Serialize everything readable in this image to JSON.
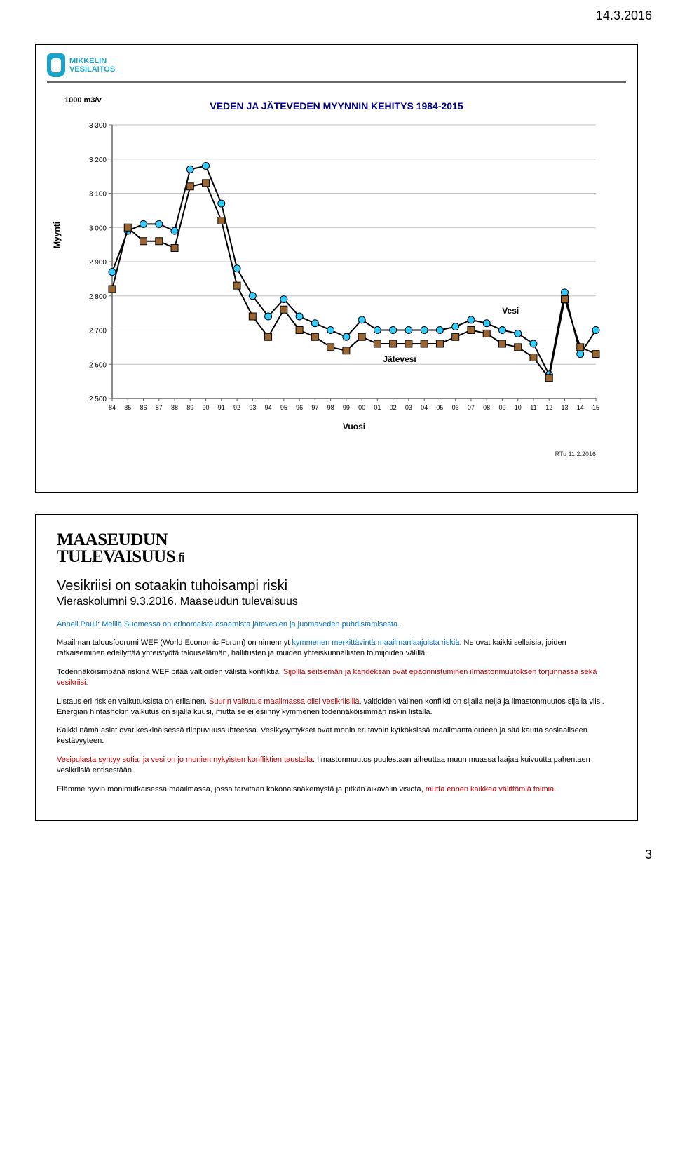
{
  "page": {
    "date": "14.3.2016",
    "number": "3"
  },
  "slide1": {
    "logo_line1": "MIKKELIN",
    "logo_line2": "VESILAITOS",
    "chart": {
      "type": "line",
      "title": "VEDEN JA JÄTEVEDEN MYYNNIN KEHITYS 1984-2015",
      "y_unit_label": "1000 m3/v",
      "x_label": "Vuosi",
      "y_label_rotated": "Myynti",
      "attribution": "RTu  11.2.2016",
      "ylim": [
        2500,
        3300
      ],
      "ytick_step": 100,
      "yticks": [
        "2 500",
        "2 600",
        "2 700",
        "2 800",
        "2 900",
        "3 000",
        "3 100",
        "3 200",
        "3 300"
      ],
      "xticks": [
        "84",
        "85",
        "86",
        "87",
        "88",
        "89",
        "90",
        "91",
        "92",
        "93",
        "94",
        "95",
        "96",
        "97",
        "98",
        "99",
        "00",
        "01",
        "02",
        "03",
        "04",
        "05",
        "06",
        "07",
        "08",
        "09",
        "10",
        "11",
        "12",
        "13",
        "14",
        "15"
      ],
      "background_color": "#ffffff",
      "grid_color": "#bfbfbf",
      "axis_color": "#666666",
      "label_fontsize": 12,
      "tick_fontsize": 10,
      "title_fontsize": 14,
      "title_color": "#000080",
      "series": [
        {
          "name": "Vesi",
          "label": "Vesi",
          "color": "#000000",
          "marker_fill": "#33ccff",
          "marker_stroke": "#000000",
          "marker_shape": "circle",
          "marker_size": 5,
          "line_width": 2,
          "values": [
            2870,
            2990,
            3010,
            3010,
            2990,
            3170,
            3180,
            3070,
            2880,
            2800,
            2740,
            2790,
            2740,
            2720,
            2700,
            2680,
            2730,
            2700,
            2700,
            2700,
            2700,
            2700,
            2710,
            2730,
            2720,
            2700,
            2690,
            2660,
            2570,
            2810,
            2630,
            2700
          ]
        },
        {
          "name": "Jätevesi",
          "label": "Jätevesi",
          "color": "#000000",
          "marker_fill": "#996633",
          "marker_stroke": "#000000",
          "marker_shape": "square",
          "marker_size": 5,
          "line_width": 2,
          "values": [
            2820,
            3000,
            2960,
            2960,
            2940,
            3120,
            3130,
            3020,
            2830,
            2740,
            2680,
            2760,
            2700,
            2680,
            2650,
            2640,
            2680,
            2660,
            2660,
            2660,
            2660,
            2660,
            2680,
            2700,
            2690,
            2660,
            2650,
            2620,
            2560,
            2790,
            2650,
            2630
          ]
        }
      ]
    }
  },
  "slide2": {
    "logo_line1": "MAASEUDUN",
    "logo_line2": "TULEVAISUUS",
    "logo_suffix": ".fi",
    "headline": "Vesikriisi on sotaakin tuhoisampi riski",
    "subhead": "Vieraskolumni 9.3.2016. Maaseudun tulevaisuus",
    "p1a": "Anneli Pauli: Meillä Suomessa on erinomaista osaamista jätevesien ja juomaveden puhdistamisesta.",
    "p2a": "Maailman talousfoorumi WEF (World Economic Forum) on nimennyt ",
    "p2b": "kymmenen merkittävintä maailmanlaajuista riskiä",
    "p2c": ". Ne ovat kaikki sellaisia, joiden ratkaiseminen edellyttää yhteistyötä talouselämän, hallitusten ja muiden yhteiskunnallisten toimijoiden välillä.",
    "p3a": "Todennäköisimpänä riskinä WEF pitää valtioiden välistä konfliktia. ",
    "p3b": "Sijoilla seitsemän ja kahdeksan ovat epäonnistuminen ilmastonmuutoksen torjunnassa sekä vesikriisi.",
    "p4a": "Listaus eri riskien vaikutuksista on erilainen. ",
    "p4b": "Suurin vaikutus maailmassa olisi vesikriisillä",
    "p4c": ", valtioiden välinen konflikti on sijalla neljä ja ilmastonmuutos sijalla viisi. Energian hintashokin vaikutus on sijalla kuusi, mutta se ei esiinny kymmenen todennäköisimmän riskin listalla.",
    "p5": "Kaikki nämä asiat ovat keskinäisessä riippuvuussuhteessa. Vesikysymykset ovat monin eri tavoin kytköksissä maailmantalouteen ja sitä kautta sosiaaliseen kestävyyteen.",
    "p6a": "Vesipulasta syntyy sotia, ja vesi on jo monien nykyisten konfliktien taustalla",
    "p6b": ". Ilmastonmuutos puolestaan aiheuttaa muun muassa laajaa kuivuutta pahentaen vesikriisiä entisestään.",
    "p7a": "Elämme hyvin monimutkaisessa maailmassa, jossa tarvitaan kokonaisnäkemystä ja pitkän aikavälin visiota, ",
    "p7b": "mutta ennen kaikkea välittömiä toimia.",
    "colors": {
      "blue": "#0070c0",
      "red": "#c00000",
      "text": "#000000"
    },
    "font_size_body": 11,
    "font_size_headline": 20
  }
}
